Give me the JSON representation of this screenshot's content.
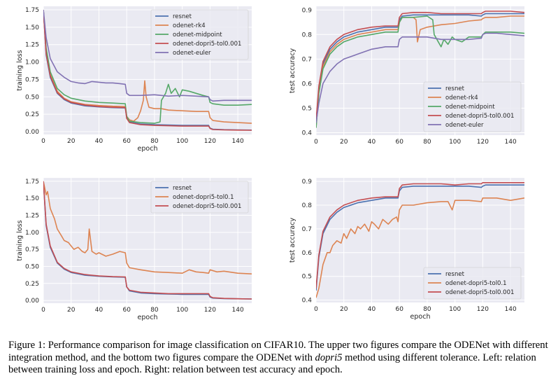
{
  "colors": {
    "resnet": "#4c72b0",
    "odenet-rk4": "#dd8452",
    "odenet-midpoint": "#55a868",
    "odenet-dopri5-tol0.001": "#c44e52",
    "odenet-euler": "#8172b3",
    "odenet-dopri5-tol0.1": "#dd8452",
    "plot_background": "#eaeaf2",
    "grid": "#ffffff"
  },
  "caption": {
    "prefix": "Figure 1: Performance comparison for image classification on CIFAR10. The upper two figures compare the ODENet with different integration method, and the bottom two figures compare the ODENet with ",
    "method": "dopri5",
    "suffix": " method using different tolerance. Left: relation between training loss and epoch. Right: relation between test accuracy and epoch."
  },
  "chart_data": [
    {
      "type": "line",
      "xlabel": "epoch",
      "ylabel": "training loss",
      "xlim": [
        0,
        150
      ],
      "ylim": [
        -0.04,
        1.8
      ],
      "xticks": [
        0,
        20,
        40,
        60,
        80,
        100,
        120,
        140
      ],
      "yticks": [
        0.0,
        0.25,
        0.5,
        0.75,
        1.0,
        1.25,
        1.5,
        1.75
      ],
      "ytick_labels": [
        "0.00",
        "0.25",
        "0.50",
        "0.75",
        "1.00",
        "1.25",
        "1.50",
        "1.75"
      ],
      "grid": true,
      "legend_position": "top-right",
      "series": [
        {
          "name": "resnet",
          "x": [
            0,
            2,
            5,
            10,
            15,
            20,
            30,
            40,
            50,
            59,
            60,
            62,
            70,
            80,
            90,
            100,
            110,
            119,
            120,
            122,
            130,
            140,
            150
          ],
          "values": [
            1.75,
            1.1,
            0.78,
            0.55,
            0.46,
            0.41,
            0.37,
            0.355,
            0.345,
            0.34,
            0.2,
            0.14,
            0.11,
            0.1,
            0.095,
            0.09,
            0.09,
            0.09,
            0.05,
            0.035,
            0.028,
            0.025,
            0.022
          ]
        },
        {
          "name": "odenet-rk4",
          "x": [
            0,
            2,
            5,
            10,
            15,
            20,
            30,
            40,
            50,
            59,
            60,
            62,
            65,
            68,
            70,
            72,
            73,
            74,
            76,
            80,
            85,
            90,
            100,
            110,
            119,
            120,
            122,
            130,
            140,
            150
          ],
          "values": [
            1.75,
            1.15,
            0.82,
            0.58,
            0.48,
            0.43,
            0.39,
            0.375,
            0.365,
            0.36,
            0.22,
            0.17,
            0.15,
            0.2,
            0.3,
            0.45,
            0.73,
            0.5,
            0.35,
            0.33,
            0.33,
            0.31,
            0.3,
            0.29,
            0.29,
            0.2,
            0.16,
            0.14,
            0.13,
            0.12
          ]
        },
        {
          "name": "odenet-midpoint",
          "x": [
            0,
            2,
            5,
            10,
            15,
            20,
            30,
            40,
            50,
            59,
            60,
            62,
            70,
            80,
            84,
            85,
            88,
            90,
            92,
            95,
            98,
            100,
            105,
            110,
            115,
            119,
            120,
            122,
            130,
            140,
            150
          ],
          "values": [
            1.75,
            1.2,
            0.86,
            0.62,
            0.53,
            0.48,
            0.44,
            0.42,
            0.41,
            0.4,
            0.22,
            0.15,
            0.13,
            0.12,
            0.14,
            0.45,
            0.55,
            0.68,
            0.55,
            0.62,
            0.5,
            0.6,
            0.58,
            0.55,
            0.52,
            0.5,
            0.42,
            0.4,
            0.38,
            0.38,
            0.39
          ]
        },
        {
          "name": "odenet-dopri5-tol0.001",
          "x": [
            0,
            2,
            5,
            10,
            15,
            20,
            30,
            40,
            50,
            59,
            60,
            62,
            70,
            80,
            90,
            100,
            110,
            119,
            120,
            122,
            130,
            140,
            150
          ],
          "values": [
            1.75,
            1.12,
            0.8,
            0.56,
            0.47,
            0.42,
            0.38,
            0.36,
            0.35,
            0.345,
            0.19,
            0.13,
            0.1,
            0.09,
            0.085,
            0.08,
            0.08,
            0.08,
            0.045,
            0.03,
            0.025,
            0.022,
            0.02
          ]
        },
        {
          "name": "odenet-euler",
          "x": [
            0,
            2,
            5,
            10,
            15,
            20,
            25,
            30,
            35,
            40,
            45,
            50,
            55,
            59,
            60,
            62,
            70,
            80,
            90,
            100,
            110,
            119,
            120,
            122,
            130,
            140,
            150
          ],
          "values": [
            1.75,
            1.35,
            1.05,
            0.86,
            0.78,
            0.72,
            0.7,
            0.69,
            0.72,
            0.71,
            0.7,
            0.7,
            0.69,
            0.68,
            0.55,
            0.52,
            0.52,
            0.53,
            0.51,
            0.52,
            0.51,
            0.5,
            0.46,
            0.44,
            0.45,
            0.45,
            0.45
          ]
        }
      ]
    },
    {
      "type": "line",
      "xlabel": "",
      "ylabel": "test accuracy",
      "xlim": [
        0,
        150
      ],
      "ylim": [
        0.39,
        0.915
      ],
      "xticks": [
        0,
        20,
        40,
        60,
        80,
        100,
        120,
        140
      ],
      "yticks": [
        0.4,
        0.5,
        0.6,
        0.7,
        0.8,
        0.9
      ],
      "ytick_labels": [
        "0.4",
        "0.5",
        "0.6",
        "0.7",
        "0.8",
        "0.9"
      ],
      "grid": true,
      "legend_position": "bottom-right",
      "series": [
        {
          "name": "resnet",
          "x": [
            0,
            2,
            5,
            10,
            15,
            20,
            30,
            40,
            50,
            59,
            60,
            62,
            70,
            80,
            90,
            100,
            110,
            119,
            120,
            122,
            130,
            140,
            150
          ],
          "values": [
            0.44,
            0.58,
            0.68,
            0.74,
            0.77,
            0.79,
            0.81,
            0.82,
            0.83,
            0.83,
            0.86,
            0.875,
            0.88,
            0.88,
            0.88,
            0.88,
            0.88,
            0.875,
            0.88,
            0.885,
            0.885,
            0.885,
            0.885
          ]
        },
        {
          "name": "odenet-rk4",
          "x": [
            0,
            2,
            5,
            10,
            15,
            20,
            30,
            40,
            50,
            59,
            60,
            62,
            70,
            72,
            73,
            75,
            80,
            90,
            100,
            110,
            119,
            120,
            122,
            130,
            140,
            150
          ],
          "values": [
            0.42,
            0.57,
            0.67,
            0.73,
            0.76,
            0.78,
            0.8,
            0.81,
            0.82,
            0.82,
            0.85,
            0.87,
            0.87,
            0.86,
            0.77,
            0.82,
            0.83,
            0.84,
            0.845,
            0.855,
            0.86,
            0.865,
            0.87,
            0.87,
            0.875,
            0.875
          ]
        },
        {
          "name": "odenet-midpoint",
          "x": [
            0,
            2,
            5,
            10,
            15,
            20,
            30,
            40,
            50,
            59,
            60,
            62,
            70,
            80,
            84,
            85,
            88,
            90,
            92,
            95,
            98,
            100,
            105,
            110,
            119,
            120,
            122,
            130,
            140,
            150
          ],
          "values": [
            0.42,
            0.56,
            0.66,
            0.72,
            0.75,
            0.77,
            0.79,
            0.8,
            0.81,
            0.81,
            0.85,
            0.87,
            0.87,
            0.875,
            0.86,
            0.8,
            0.77,
            0.75,
            0.78,
            0.76,
            0.79,
            0.78,
            0.77,
            0.79,
            0.79,
            0.8,
            0.81,
            0.81,
            0.81,
            0.805
          ]
        },
        {
          "name": "odenet-dopri5-tol0.001",
          "x": [
            0,
            2,
            5,
            10,
            15,
            20,
            30,
            40,
            50,
            59,
            60,
            62,
            70,
            80,
            90,
            100,
            110,
            119,
            120,
            122,
            130,
            140,
            150
          ],
          "values": [
            0.45,
            0.59,
            0.69,
            0.75,
            0.78,
            0.8,
            0.82,
            0.83,
            0.835,
            0.835,
            0.87,
            0.885,
            0.89,
            0.89,
            0.885,
            0.885,
            0.885,
            0.885,
            0.89,
            0.895,
            0.895,
            0.895,
            0.89
          ]
        },
        {
          "name": "odenet-euler",
          "x": [
            0,
            2,
            5,
            10,
            15,
            20,
            30,
            40,
            50,
            59,
            60,
            62,
            70,
            80,
            90,
            100,
            110,
            119,
            120,
            122,
            130,
            140,
            150
          ],
          "values": [
            0.44,
            0.52,
            0.6,
            0.65,
            0.68,
            0.7,
            0.72,
            0.74,
            0.75,
            0.75,
            0.78,
            0.79,
            0.79,
            0.79,
            0.78,
            0.78,
            0.78,
            0.785,
            0.8,
            0.805,
            0.805,
            0.8,
            0.795
          ]
        }
      ]
    },
    {
      "type": "line",
      "xlabel": "epoch",
      "ylabel": "training loss",
      "xlim": [
        0,
        150
      ],
      "ylim": [
        -0.04,
        1.8
      ],
      "xticks": [
        0,
        20,
        40,
        60,
        80,
        100,
        120,
        140
      ],
      "yticks": [
        0.0,
        0.25,
        0.5,
        0.75,
        1.0,
        1.25,
        1.5,
        1.75
      ],
      "ytick_labels": [
        "0.00",
        "0.25",
        "0.50",
        "0.75",
        "1.00",
        "1.25",
        "1.50",
        "1.75"
      ],
      "grid": true,
      "legend_position": "top-right",
      "series": [
        {
          "name": "resnet",
          "x": [
            0,
            2,
            5,
            10,
            15,
            20,
            30,
            40,
            50,
            59,
            60,
            62,
            70,
            80,
            90,
            100,
            110,
            119,
            120,
            122,
            130,
            140,
            150
          ],
          "values": [
            1.75,
            1.1,
            0.78,
            0.55,
            0.46,
            0.41,
            0.37,
            0.355,
            0.345,
            0.34,
            0.2,
            0.14,
            0.11,
            0.1,
            0.095,
            0.09,
            0.09,
            0.09,
            0.05,
            0.035,
            0.028,
            0.025,
            0.022
          ]
        },
        {
          "name": "odenet-dopri5-tol0.1",
          "x": [
            0,
            2,
            3,
            5,
            8,
            10,
            13,
            15,
            18,
            20,
            22,
            25,
            28,
            30,
            32,
            33,
            35,
            38,
            40,
            45,
            50,
            55,
            59,
            60,
            62,
            70,
            80,
            90,
            100,
            105,
            110,
            115,
            119,
            120,
            125,
            130,
            140,
            150
          ],
          "values": [
            1.75,
            1.55,
            1.6,
            1.35,
            1.2,
            1.05,
            0.95,
            0.88,
            0.85,
            0.8,
            0.75,
            0.78,
            0.72,
            0.7,
            0.75,
            1.05,
            0.72,
            0.68,
            0.7,
            0.65,
            0.68,
            0.72,
            0.7,
            0.55,
            0.48,
            0.45,
            0.42,
            0.41,
            0.4,
            0.45,
            0.42,
            0.41,
            0.4,
            0.45,
            0.42,
            0.43,
            0.4,
            0.39
          ]
        },
        {
          "name": "odenet-dopri5-tol0.001",
          "x": [
            0,
            2,
            5,
            10,
            15,
            20,
            30,
            40,
            50,
            59,
            60,
            62,
            70,
            80,
            90,
            100,
            110,
            119,
            120,
            122,
            130,
            140,
            150
          ],
          "values": [
            1.75,
            1.12,
            0.8,
            0.56,
            0.47,
            0.42,
            0.38,
            0.36,
            0.35,
            0.345,
            0.2,
            0.15,
            0.12,
            0.11,
            0.1,
            0.1,
            0.1,
            0.1,
            0.06,
            0.04,
            0.03,
            0.025,
            0.022
          ]
        }
      ]
    },
    {
      "type": "line",
      "xlabel": "epoch",
      "ylabel": "test accuracy",
      "xlim": [
        0,
        150
      ],
      "ylim": [
        0.39,
        0.915
      ],
      "xticks": [
        0,
        20,
        40,
        60,
        80,
        100,
        120,
        140
      ],
      "yticks": [
        0.4,
        0.5,
        0.6,
        0.7,
        0.8,
        0.9
      ],
      "ytick_labels": [
        "0.4",
        "0.5",
        "0.6",
        "0.7",
        "0.8",
        "0.9"
      ],
      "grid": true,
      "legend_position": "bottom-right",
      "series": [
        {
          "name": "resnet",
          "x": [
            0,
            2,
            5,
            10,
            15,
            20,
            30,
            40,
            50,
            59,
            60,
            62,
            70,
            80,
            90,
            100,
            110,
            119,
            120,
            122,
            130,
            140,
            150
          ],
          "values": [
            0.44,
            0.58,
            0.68,
            0.74,
            0.77,
            0.79,
            0.81,
            0.82,
            0.83,
            0.83,
            0.86,
            0.875,
            0.88,
            0.88,
            0.88,
            0.88,
            0.88,
            0.875,
            0.88,
            0.885,
            0.885,
            0.885,
            0.885
          ]
        },
        {
          "name": "odenet-dopri5-tol0.1",
          "x": [
            0,
            2,
            5,
            8,
            10,
            12,
            15,
            18,
            20,
            22,
            25,
            28,
            30,
            32,
            35,
            38,
            40,
            42,
            45,
            48,
            50,
            52,
            55,
            58,
            59,
            60,
            62,
            70,
            80,
            90,
            95,
            98,
            100,
            105,
            110,
            119,
            120,
            130,
            140,
            150
          ],
          "values": [
            0.41,
            0.45,
            0.55,
            0.6,
            0.6,
            0.63,
            0.65,
            0.64,
            0.68,
            0.66,
            0.7,
            0.68,
            0.71,
            0.7,
            0.72,
            0.69,
            0.73,
            0.72,
            0.7,
            0.74,
            0.73,
            0.72,
            0.74,
            0.75,
            0.73,
            0.78,
            0.8,
            0.8,
            0.81,
            0.815,
            0.815,
            0.78,
            0.82,
            0.82,
            0.82,
            0.815,
            0.83,
            0.83,
            0.82,
            0.83
          ]
        },
        {
          "name": "odenet-dopri5-tol0.001",
          "x": [
            0,
            2,
            5,
            10,
            15,
            20,
            30,
            40,
            50,
            59,
            60,
            62,
            70,
            80,
            90,
            100,
            110,
            119,
            120,
            122,
            130,
            140,
            150
          ],
          "values": [
            0.45,
            0.59,
            0.69,
            0.75,
            0.78,
            0.8,
            0.82,
            0.83,
            0.835,
            0.835,
            0.87,
            0.885,
            0.89,
            0.89,
            0.89,
            0.885,
            0.89,
            0.89,
            0.895,
            0.895,
            0.895,
            0.895,
            0.895
          ]
        }
      ]
    }
  ]
}
